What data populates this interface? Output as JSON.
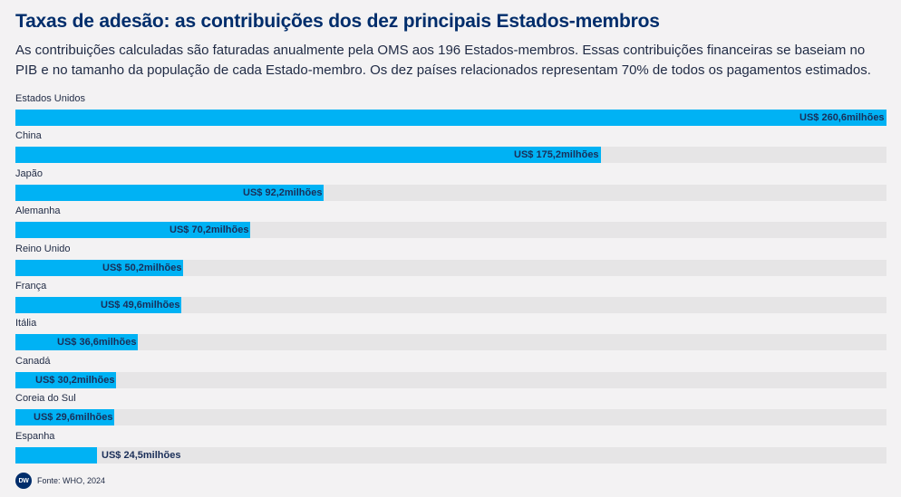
{
  "title": "Taxas de adesão: as contribuições dos dez principais Estados-membros",
  "subtitle": "As contribuições calculadas são faturadas anualmente pela OMS aos 196 Estados-membros. Essas contribuições financeiras se baseiam no PIB e no tamanho da população de cada Estado-membro. Os dez países relacionados representam 70% de todos os pagamentos estimados.",
  "source": "Fonte: WHO, 2024",
  "logo_text": "DW",
  "colors": {
    "bar": "#00b2f4",
    "track": "#e6e5e6",
    "title": "#002d6b",
    "value_label": "#1a2e58",
    "background": "#f3f2f3"
  },
  "chart_data": {
    "type": "bar",
    "orientation": "horizontal",
    "title": "Taxas de adesão: as contribuições dos dez principais Estados-membros",
    "xlim": [
      0,
      260.6
    ],
    "categories": [
      "Estados Unidos",
      "China",
      "Japão",
      "Alemanha",
      "Reino Unido",
      "França",
      "Itália",
      "Canadá",
      "Coreia do Sul",
      "Espanha"
    ],
    "values": [
      260.6,
      175.2,
      92.2,
      70.2,
      50.2,
      49.6,
      36.6,
      30.2,
      29.6,
      24.5
    ],
    "value_labels": [
      "US$ 260,6milhões",
      "US$ 175,2milhões",
      "US$ 92,2milhões",
      "US$ 70,2milhões",
      "US$ 50,2milhões",
      "US$ 49,6milhões",
      "US$ 36,6milhões",
      "US$ 30,2milhões",
      "US$ 29,6milhões",
      "US$ 24,5milhões"
    ],
    "grid": false,
    "legend": "none"
  }
}
